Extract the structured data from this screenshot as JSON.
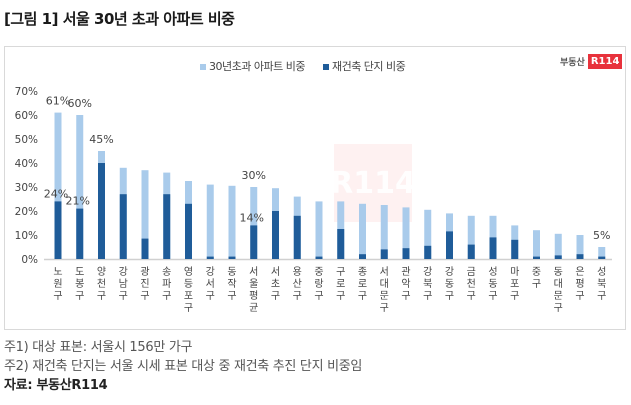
{
  "title": "[그림 1] 서울 30년 초과 아파트 비중",
  "logo": {
    "text": "부동산",
    "badge": "R114"
  },
  "notes": [
    "주1) 대상 표본: 서울시 156만 가구",
    "주2) 재건축 단지는 서울 시세 표본 대상 중 재건축 추진 단지 비중임"
  ],
  "source": "자료: 부동산R114",
  "colors": {
    "over30": "#a9cbeb",
    "rebuild": "#1f5c99"
  },
  "chart_data": {
    "type": "bar",
    "stacked": "overlay",
    "title": "",
    "legend": [
      "30년초과 아파트 비중",
      "재건축 단지 비중"
    ],
    "legend_position": "top",
    "ylim": [
      0,
      70
    ],
    "yticks": [
      "0%",
      "10%",
      "20%",
      "30%",
      "40%",
      "50%",
      "60%",
      "70%"
    ],
    "categories": [
      "노원구",
      "도봉구",
      "양천구",
      "강남구",
      "광진구",
      "송파구",
      "영등포구",
      "강서구",
      "동작구",
      "서울평균",
      "서초구",
      "용산구",
      "중랑구",
      "구로구",
      "종로구",
      "서대문구",
      "관악구",
      "강북구",
      "강동구",
      "금천구",
      "성동구",
      "마포구",
      "중구",
      "동대문구",
      "은평구",
      "성북구"
    ],
    "series": [
      {
        "name": "30년초과 아파트 비중",
        "values": [
          61,
          60,
          45,
          38,
          37,
          36,
          32.5,
          31,
          30.5,
          30,
          29.5,
          26,
          24,
          24,
          23,
          22.5,
          21.5,
          20.5,
          19,
          18,
          18,
          14,
          12,
          10.5,
          10,
          5
        ]
      },
      {
        "name": "재건축 단지 비중",
        "values": [
          24,
          21,
          40,
          27,
          8.5,
          27,
          23,
          1,
          1,
          14,
          20,
          18,
          1,
          12.5,
          2,
          4,
          4.5,
          5.5,
          11.5,
          6,
          9,
          8,
          1,
          1.5,
          2,
          1
        ]
      }
    ],
    "data_labels": [
      {
        "category": "노원구",
        "series": 0,
        "text": "61%"
      },
      {
        "category": "노원구",
        "series": 1,
        "text": "24%"
      },
      {
        "category": "도봉구",
        "series": 0,
        "text": "60%"
      },
      {
        "category": "도봉구",
        "series": 1,
        "text": "21%"
      },
      {
        "category": "양천구",
        "series": 0,
        "text": "45%"
      },
      {
        "category": "서울평균",
        "series": 0,
        "text": "30%"
      },
      {
        "category": "서울평균",
        "series": 1,
        "text": "14%"
      },
      {
        "category": "성북구",
        "series": 0,
        "text": "5%"
      }
    ]
  }
}
